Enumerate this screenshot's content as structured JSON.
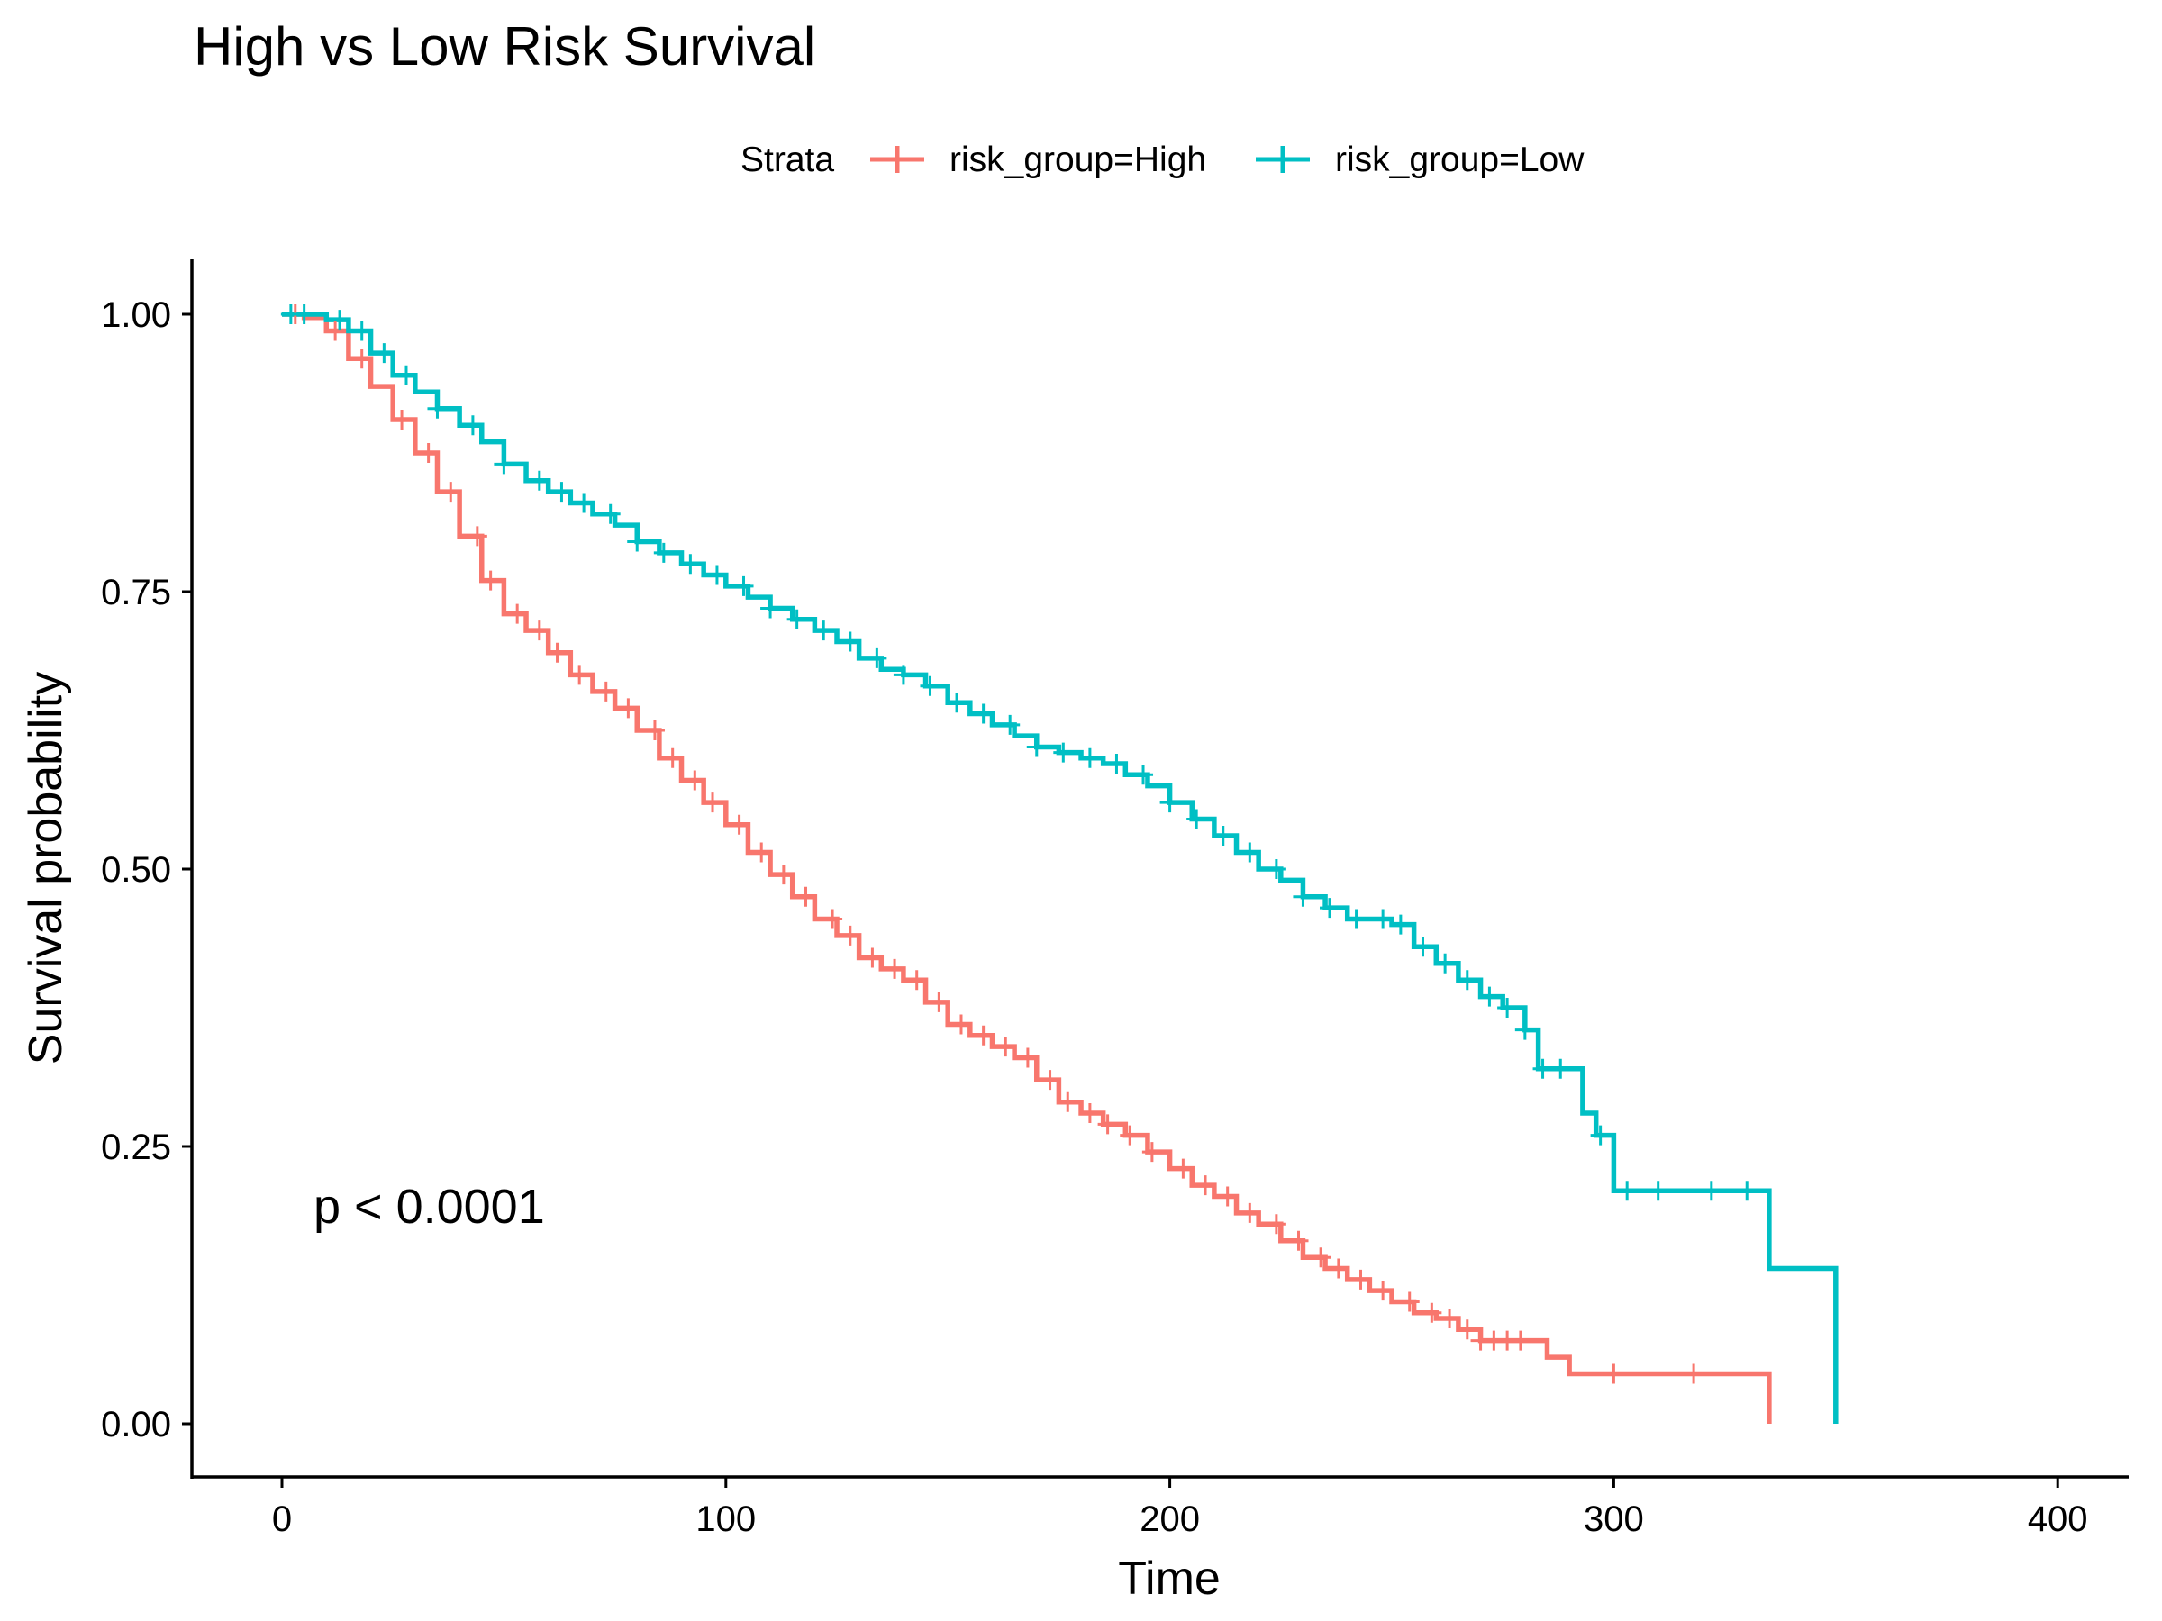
{
  "chart_data": {
    "type": "line",
    "subtype": "kaplan-meier step",
    "title": "High vs Low Risk Survival",
    "xlabel": "Time",
    "ylabel": "Survival probability",
    "xlim": [
      -20,
      415
    ],
    "ylim": [
      -0.05,
      1.05
    ],
    "x_ticks": [
      0,
      100,
      200,
      300,
      400
    ],
    "y_ticks": [
      0.0,
      0.25,
      0.5,
      0.75,
      1.0
    ],
    "y_tick_labels": [
      "0.00",
      "0.25",
      "0.50",
      "0.75",
      "1.00"
    ],
    "grid": false,
    "legend": {
      "placement": "top",
      "title": "Strata",
      "entries": [
        "risk_group=High",
        "risk_group=Low"
      ]
    },
    "annotations": [
      {
        "text": "p < 0.0001",
        "x": 7,
        "y": 0.19
      }
    ],
    "series": [
      {
        "name": "risk_group=High",
        "color": "#F8766D",
        "x": [
          0,
          5,
          10,
          15,
          20,
          25,
          30,
          35,
          40,
          45,
          50,
          55,
          60,
          65,
          70,
          75,
          80,
          85,
          90,
          95,
          100,
          105,
          110,
          115,
          120,
          125,
          130,
          135,
          140,
          145,
          150,
          155,
          160,
          165,
          170,
          175,
          180,
          185,
          190,
          195,
          200,
          205,
          210,
          215,
          220,
          225,
          230,
          235,
          240,
          245,
          250,
          255,
          260,
          265,
          270,
          275,
          280,
          285,
          290,
          300,
          320,
          335
        ],
        "y": [
          1.0,
          0.997,
          0.985,
          0.96,
          0.935,
          0.905,
          0.875,
          0.84,
          0.8,
          0.76,
          0.73,
          0.715,
          0.695,
          0.675,
          0.66,
          0.645,
          0.625,
          0.6,
          0.58,
          0.56,
          0.54,
          0.515,
          0.495,
          0.475,
          0.455,
          0.44,
          0.42,
          0.41,
          0.4,
          0.38,
          0.36,
          0.35,
          0.34,
          0.33,
          0.31,
          0.29,
          0.28,
          0.27,
          0.26,
          0.245,
          0.23,
          0.215,
          0.205,
          0.19,
          0.18,
          0.165,
          0.15,
          0.14,
          0.13,
          0.12,
          0.11,
          0.1,
          0.095,
          0.085,
          0.075,
          0.075,
          0.075,
          0.06,
          0.045,
          0.045,
          0.045,
          0.0
        ],
        "censor_x": [
          3,
          12,
          18,
          27,
          33,
          38,
          44,
          47,
          53,
          58,
          62,
          67,
          73,
          78,
          84,
          88,
          93,
          97,
          103,
          108,
          113,
          118,
          124,
          128,
          133,
          138,
          143,
          148,
          153,
          158,
          163,
          168,
          173,
          177,
          182,
          186,
          191,
          196,
          203,
          208,
          213,
          218,
          224,
          229,
          234,
          238,
          243,
          248,
          254,
          259,
          263,
          267,
          270,
          273,
          276,
          279,
          300,
          318
        ]
      },
      {
        "name": "risk_group=Low",
        "color": "#00BFC4",
        "x": [
          0,
          5,
          10,
          15,
          20,
          25,
          30,
          35,
          40,
          45,
          50,
          55,
          60,
          65,
          70,
          75,
          80,
          85,
          90,
          95,
          100,
          105,
          110,
          115,
          120,
          125,
          130,
          135,
          140,
          145,
          150,
          155,
          160,
          165,
          170,
          175,
          180,
          185,
          190,
          195,
          200,
          205,
          210,
          215,
          220,
          225,
          230,
          235,
          240,
          245,
          250,
          255,
          260,
          265,
          270,
          275,
          280,
          283,
          286,
          290,
          293,
          296,
          300,
          315,
          335,
          350
        ],
        "y": [
          1.0,
          1.0,
          0.995,
          0.985,
          0.965,
          0.945,
          0.93,
          0.915,
          0.9,
          0.885,
          0.865,
          0.85,
          0.84,
          0.83,
          0.82,
          0.81,
          0.795,
          0.785,
          0.775,
          0.765,
          0.755,
          0.745,
          0.735,
          0.725,
          0.715,
          0.705,
          0.69,
          0.68,
          0.675,
          0.665,
          0.65,
          0.64,
          0.63,
          0.62,
          0.61,
          0.605,
          0.6,
          0.595,
          0.585,
          0.575,
          0.56,
          0.545,
          0.53,
          0.515,
          0.5,
          0.49,
          0.475,
          0.465,
          0.455,
          0.455,
          0.45,
          0.43,
          0.415,
          0.4,
          0.385,
          0.375,
          0.355,
          0.32,
          0.32,
          0.32,
          0.28,
          0.26,
          0.21,
          0.21,
          0.14,
          0.0
        ],
        "censor_x": [
          2,
          5,
          13,
          18,
          23,
          28,
          35,
          43,
          50,
          58,
          63,
          68,
          74,
          80,
          86,
          92,
          98,
          104,
          110,
          116,
          122,
          128,
          134,
          140,
          146,
          152,
          158,
          164,
          170,
          176,
          182,
          188,
          194,
          200,
          206,
          212,
          218,
          224,
          230,
          236,
          242,
          248,
          252,
          257,
          262,
          267,
          272,
          276,
          280,
          284,
          288,
          297,
          303,
          310,
          322,
          330
        ]
      }
    ]
  }
}
